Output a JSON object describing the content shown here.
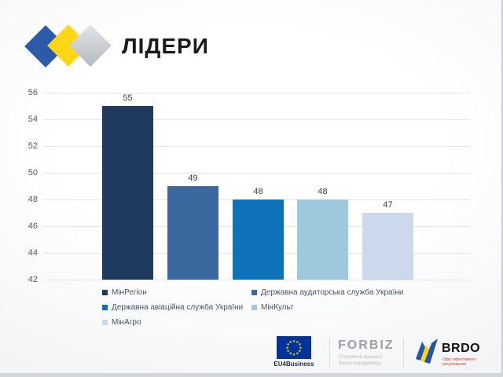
{
  "page": {
    "title": "ЛІДЕРИ"
  },
  "chart_data": {
    "type": "bar",
    "title": "ЛІДЕРИ",
    "categories": [
      "МінРегіон",
      "Державна аудиторська служба України",
      "Державна авіаційна служба України",
      "МінКульт",
      "МінАгро"
    ],
    "values": [
      55,
      49,
      48,
      48,
      47
    ],
    "bar_colors": [
      "#1f3a5f",
      "#3a689f",
      "#0e72ba",
      "#9ec9dc",
      "#ccd9ed"
    ],
    "xlabel": "",
    "ylabel": "",
    "ylim": [
      42,
      56
    ],
    "yticks": [
      56,
      54,
      52,
      50,
      48,
      46,
      44,
      42
    ],
    "grid": true,
    "legend_position": "bottom"
  },
  "footer": {
    "eu4business_label": "EU4Business",
    "forbiz_name": "FORBIZ",
    "forbiz_tagline_line1": "Створення кращого",
    "forbiz_tagline_line2": "бізнес-середовища",
    "brdo_name": "BRDO",
    "brdo_tagline_line1": "Офіс ефективного",
    "brdo_tagline_line2": "регулювання"
  },
  "colors": {
    "logo_blue": "#2b5aa8",
    "logo_yellow": "#ffd616",
    "logo_gray": "#c3c6ca",
    "eu_flag_blue": "#003399",
    "eu_star_yellow": "#ffcc00",
    "brdo_red": "#bf4538",
    "axis_label": "#595959",
    "value_label": "#404040",
    "legend_text": "#44546a",
    "gridline": "#e2e4e7"
  }
}
